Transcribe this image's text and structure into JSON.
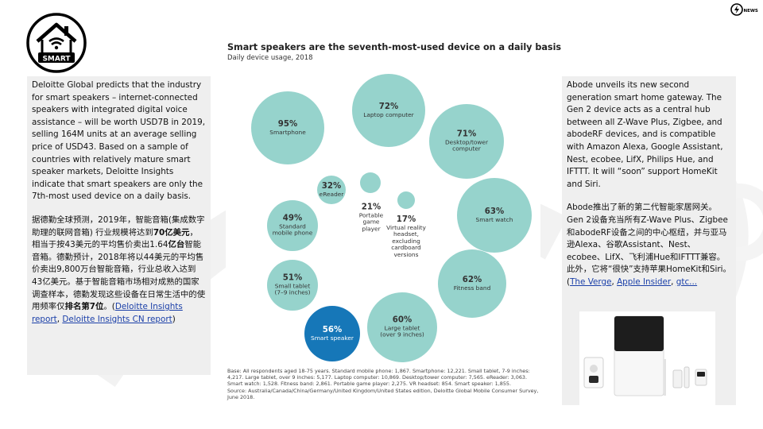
{
  "logo": {
    "text": "SMART",
    "icon": "smart-home-wifi-icon"
  },
  "brand": {
    "text": "NEWS",
    "icon": "lightning-bolt-icon"
  },
  "left_panel": {
    "en": "Deloitte Global predicts that the industry for smart speakers – internet-connected speakers with integrated digital voice assistance – will be worth USD7B in 2019, selling 164M units at an average selling price of USD43. Based on a sample of countries with relatively mature smart speaker markets, Deloitte Insights indicate that smart speakers are only the 7th-most used device on a daily basis.",
    "zh_part1": "据德勤全球预测，2019年，智能音箱(集成数字助理的联网音箱) 行业规模将达到",
    "zh_bold1": "70亿美元",
    "zh_part2": "，相当于按43美元的平均售价卖出1.64",
    "zh_bold2": "亿台",
    "zh_part3": "智能音箱。德勤预计，2018年将以44美元的平均售价卖出9,800万台智能音箱，行业总收入达到43亿美元。基于智能音箱市场相对成熟的国家调查样本，德勤发现这些设备在日常生活中的使用频率仅",
    "zh_bold3": "排名第7位",
    "zh_part4": "。(",
    "link1": "Deloitte Insights report",
    "sep": ", ",
    "link2": "Deloitte Insights CN report",
    "close": ")"
  },
  "right_panel": {
    "en": "Abode unveils its new second generation smart home gateway. The Gen 2 device acts as a central hub between all Z-Wave Plus, Zigbee, and abodeRF devices, and is compatible with Amazon Alexa, Google Assistant, Nest, ecobee, LifX, Philips Hue, and IFTTT. It will “soon” support HomeKit and Siri.",
    "zh": "Abode推出了新的第二代智能家居网关。 Gen 2设备充当所有Z-Wave Plus、Zigbee和abodeRF设备之间的中心枢纽，并与亚马逊Alexa、谷歌Assistant、Nest、ecobee、LifX、飞利浦Hue和IFTTT兼容。 此外，它将“很快”支持苹果HomeKit和Siri。(",
    "link1": "The Verge",
    "sep": ", ",
    "link2": "Apple Insider",
    "sep2": ",",
    "link3": "gtc..."
  },
  "chart_data": {
    "type": "bubble",
    "title": "Smart speakers are the seventh-most-used device on a daily basis",
    "subtitle": "Daily device usage, 2018",
    "highlight": "Smart speaker",
    "colors": {
      "default": "#96d3cc",
      "highlight": "#1677b8"
    },
    "series": [
      {
        "name": "Smartphone",
        "value": 95,
        "pct": "95%"
      },
      {
        "name": "Laptop computer",
        "value": 72,
        "pct": "72%"
      },
      {
        "name": "Desktop/tower computer",
        "value": 71,
        "pct": "71%"
      },
      {
        "name": "Smart watch",
        "value": 63,
        "pct": "63%"
      },
      {
        "name": "Fitness band",
        "value": 62,
        "pct": "62%"
      },
      {
        "name": "Large tablet (over 9 inches)",
        "value": 60,
        "pct": "60%"
      },
      {
        "name": "Smart speaker",
        "value": 56,
        "pct": "56%"
      },
      {
        "name": "Small tablet (7–9 inches)",
        "value": 51,
        "pct": "51%"
      },
      {
        "name": "Standard mobile phone",
        "value": 49,
        "pct": "49%"
      },
      {
        "name": "eReader",
        "value": 32,
        "pct": "32%"
      },
      {
        "name": "Portable game player",
        "value": 21,
        "pct": "21%"
      },
      {
        "name": "Virtual reality headset, excluding cardboard versions",
        "value": 17,
        "pct": "17%"
      }
    ],
    "footnote": "Base: All respondents aged 18-75 years. Standard mobile phone: 1,867. Smartphone: 12,221. Small tablet, 7-9 inches: 4,217. Large tablet, over 9 inches: 5,177. Laptop computer: 10,869. Desktop/tower computer: 7,565. eReader: 3,063. Smart watch: 1,528. Fitness band: 2,861. Portable game player: 2,275. VR headset: 854. Smart speaker: 1,855.",
    "source": "Source: Australia/Canada/China/Germany/United Kingdom/United States edition, Deloitte Global Mobile Consumer Survey, June 2018."
  }
}
